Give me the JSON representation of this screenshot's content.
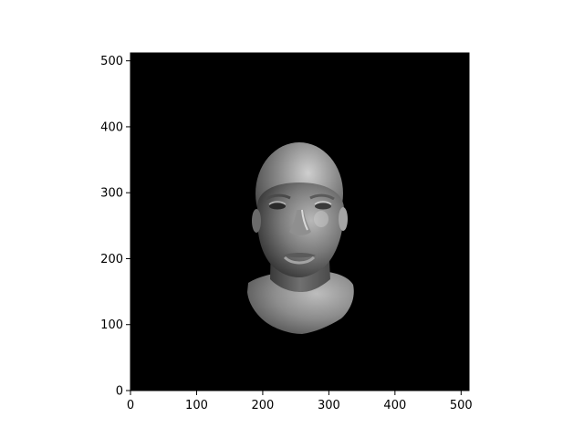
{
  "plot": {
    "image_content": "render of a gray 3D human head and shoulders on black background",
    "background_color": "#000000",
    "frame_color": "#000000",
    "x_axis": {
      "range": [
        0,
        512
      ],
      "ticks": [
        {
          "value": 0,
          "label": "0"
        },
        {
          "value": 100,
          "label": "100"
        },
        {
          "value": 200,
          "label": "200"
        },
        {
          "value": 300,
          "label": "300"
        },
        {
          "value": 400,
          "label": "400"
        },
        {
          "value": 500,
          "label": "500"
        }
      ]
    },
    "y_axis": {
      "range": [
        0,
        512
      ],
      "ticks": [
        {
          "value": 0,
          "label": "0"
        },
        {
          "value": 100,
          "label": "100"
        },
        {
          "value": 200,
          "label": "200"
        },
        {
          "value": 300,
          "label": "300"
        },
        {
          "value": 400,
          "label": "400"
        },
        {
          "value": 500,
          "label": "500"
        }
      ]
    }
  }
}
